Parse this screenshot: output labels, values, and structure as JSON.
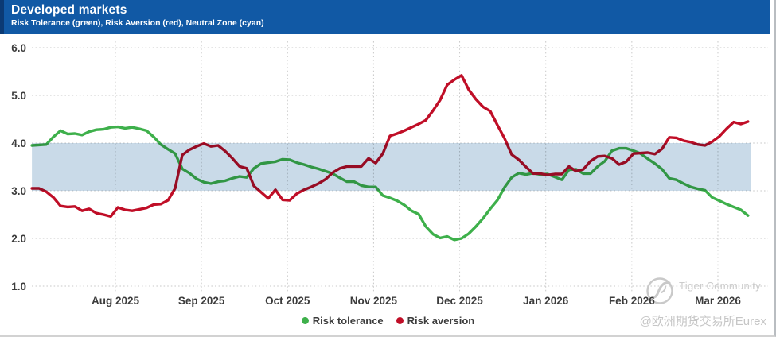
{
  "header": {
    "title": "Developed markets",
    "subtitle": "Risk Tolerance (green), Risk Aversion (red), Neutral Zone (cyan)"
  },
  "colors": {
    "header_bg": "#1159a5",
    "header_stripe": "#0b3a74",
    "tolerance_green": "#3eb04b",
    "aversion_red": "#c00e27",
    "neutral_band": "#c3d6e5",
    "gridline": "#c9c9c9",
    "axis_text": "#3c3c3c",
    "watermark_gray": "#c9c9c9"
  },
  "chart_data": {
    "type": "line",
    "title": "Developed markets",
    "subtitle": "Risk Tolerance (green), Risk Aversion (red), Neutral Zone (cyan)",
    "grid": "dotted",
    "legend_position": "bottom-center",
    "x_axis": {
      "unit": "months since 2025-07-01 (1 = Aug 2025)",
      "ticks": [
        {
          "m": 1,
          "label": "Aug 2025"
        },
        {
          "m": 2,
          "label": "Sep 2025"
        },
        {
          "m": 3,
          "label": "Oct 2025"
        },
        {
          "m": 4,
          "label": "Nov 2025"
        },
        {
          "m": 5,
          "label": "Dec 2025"
        },
        {
          "m": 6,
          "label": "Jan 2026"
        },
        {
          "m": 7,
          "label": "Feb 2026"
        },
        {
          "m": 8,
          "label": "Mar 2026"
        }
      ]
    },
    "y_axis": {
      "min": 1.0,
      "max": 6.0,
      "tick_step": 1.0,
      "ticks": [
        {
          "v": 6,
          "label": "6.0"
        },
        {
          "v": 5,
          "label": "5.0"
        },
        {
          "v": 4,
          "label": "4.0"
        },
        {
          "v": 3,
          "label": "3.0"
        },
        {
          "v": 2,
          "label": "2.0"
        },
        {
          "v": 1,
          "label": "1.0"
        }
      ]
    },
    "neutral_zone": {
      "label": "Neutral Zone (cyan)",
      "from": 3.0,
      "to": 4.0,
      "x_start": 0.03,
      "x_end": 8.38,
      "color": "#c3d6e5"
    },
    "series": [
      {
        "name": "Risk tolerance",
        "slug": "risk-tolerance-line",
        "color": "#3eb04b",
        "x_start": 0.03,
        "x_step": 0.0832,
        "values": [
          3.95,
          3.96,
          3.97,
          4.13,
          4.26,
          4.19,
          4.2,
          4.17,
          4.24,
          4.28,
          4.29,
          4.33,
          4.34,
          4.31,
          4.33,
          4.3,
          4.26,
          4.13,
          3.97,
          3.87,
          3.78,
          3.46,
          3.37,
          3.25,
          3.18,
          3.15,
          3.19,
          3.21,
          3.26,
          3.3,
          3.28,
          3.47,
          3.57,
          3.59,
          3.61,
          3.66,
          3.65,
          3.59,
          3.55,
          3.5,
          3.46,
          3.41,
          3.36,
          3.27,
          3.19,
          3.19,
          3.11,
          3.08,
          3.08,
          2.9,
          2.85,
          2.79,
          2.7,
          2.58,
          2.51,
          2.25,
          2.09,
          2.01,
          2.04,
          1.97,
          2.0,
          2.1,
          2.25,
          2.42,
          2.62,
          2.8,
          3.07,
          3.28,
          3.37,
          3.34,
          3.37,
          3.34,
          3.35,
          3.29,
          3.23,
          3.44,
          3.45,
          3.36,
          3.36,
          3.51,
          3.62,
          3.84,
          3.89,
          3.89,
          3.84,
          3.78,
          3.67,
          3.57,
          3.45,
          3.26,
          3.23,
          3.15,
          3.08,
          3.04,
          3.01,
          2.86,
          2.79,
          2.72,
          2.66,
          2.6,
          2.48
        ]
      },
      {
        "name": "Risk aversion",
        "slug": "risk-aversion-line",
        "color": "#c00e27",
        "x_start": 0.03,
        "x_step": 0.0832,
        "values": [
          3.05,
          3.05,
          2.98,
          2.86,
          2.68,
          2.66,
          2.67,
          2.58,
          2.62,
          2.53,
          2.5,
          2.46,
          2.65,
          2.6,
          2.58,
          2.61,
          2.64,
          2.71,
          2.72,
          2.8,
          3.05,
          3.75,
          3.86,
          3.93,
          3.99,
          3.93,
          3.95,
          3.83,
          3.68,
          3.51,
          3.47,
          3.1,
          2.97,
          2.84,
          3.02,
          2.81,
          2.8,
          2.94,
          3.02,
          3.08,
          3.15,
          3.24,
          3.38,
          3.47,
          3.51,
          3.51,
          3.51,
          3.68,
          3.58,
          3.78,
          4.15,
          4.2,
          4.26,
          4.33,
          4.4,
          4.48,
          4.68,
          4.9,
          5.22,
          5.33,
          5.42,
          5.12,
          4.92,
          4.76,
          4.67,
          4.38,
          4.1,
          3.76,
          3.65,
          3.5,
          3.36,
          3.36,
          3.33,
          3.35,
          3.35,
          3.51,
          3.41,
          3.45,
          3.62,
          3.72,
          3.73,
          3.68,
          3.55,
          3.61,
          3.78,
          3.79,
          3.8,
          3.77,
          3.88,
          4.12,
          4.11,
          4.05,
          4.02,
          3.97,
          3.95,
          4.03,
          4.14,
          4.3,
          4.44,
          4.4,
          4.45
        ]
      }
    ]
  },
  "legend": {
    "items": [
      {
        "label": "Risk tolerance",
        "color": "#3eb04b"
      },
      {
        "label": "Risk aversion",
        "color": "#c00e27"
      }
    ]
  },
  "watermark": {
    "brand": "Tiger Community",
    "handle": "@欧洲期货交易所Eurex"
  }
}
